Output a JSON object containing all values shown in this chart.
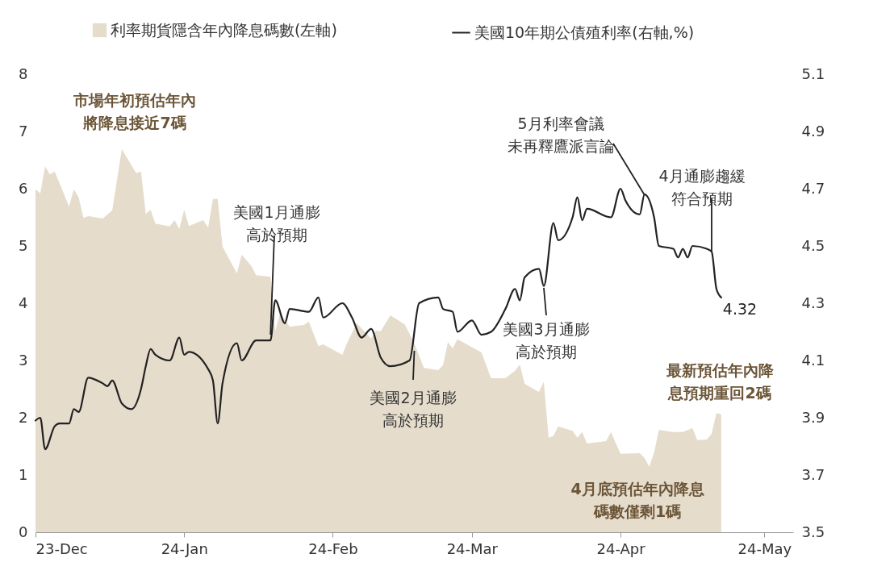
{
  "chart_data": {
    "type": "area",
    "legend": "top",
    "xlim": [
      "2023-12-01",
      "2024-05-07"
    ],
    "xticks": [
      {
        "value": "2023-12-01",
        "label": "23-Dec"
      },
      {
        "value": "2024-01-01",
        "label": "24-Jan"
      },
      {
        "value": "2024-02-01",
        "label": "24-Feb"
      },
      {
        "value": "2024-03-01",
        "label": "24-Mar"
      },
      {
        "value": "2024-04-01",
        "label": "24-Apr"
      },
      {
        "value": "2024-05-01",
        "label": "24-May"
      }
    ],
    "ylim": [
      0,
      8
    ],
    "yticks": [
      0,
      1,
      2,
      3,
      4,
      5,
      6,
      7,
      8
    ],
    "y2lim": [
      3.5,
      5.1
    ],
    "y2ticks": [
      3.5,
      3.7,
      3.9,
      4.1,
      4.3,
      4.5,
      4.7,
      4.9,
      5.1
    ],
    "series": [
      {
        "name": "利率期貨隱含年內降息碼數(左軸)",
        "color": "#e5dccc",
        "x": [
          "2023-12-01",
          "2023-12-02",
          "2023-12-03",
          "2023-12-04",
          "2023-12-05",
          "2023-12-08",
          "2023-12-09",
          "2023-12-10",
          "2023-12-11",
          "2023-12-12",
          "2023-12-15",
          "2023-12-17",
          "2023-12-19",
          "2023-12-22",
          "2023-12-23",
          "2023-12-24",
          "2023-12-25",
          "2023-12-26",
          "2023-12-29",
          "2023-12-30",
          "2023-12-31",
          "2024-01-01",
          "2024-01-02",
          "2024-01-05",
          "2024-01-06",
          "2024-01-07",
          "2024-01-08",
          "2024-01-09",
          "2024-01-12",
          "2024-01-13",
          "2024-01-15",
          "2024-01-16",
          "2024-01-19",
          "2024-01-20",
          "2024-01-21",
          "2024-01-23",
          "2024-01-26",
          "2024-01-27",
          "2024-01-29",
          "2024-01-30",
          "2024-02-03",
          "2024-02-04",
          "2024-02-06",
          "2024-02-09",
          "2024-02-10",
          "2024-02-11",
          "2024-02-13",
          "2024-02-16",
          "2024-02-18",
          "2024-02-20",
          "2024-02-23",
          "2024-02-24",
          "2024-02-25",
          "2024-02-26",
          "2024-02-27",
          "2024-03-03",
          "2024-03-05",
          "2024-03-08",
          "2024-03-10",
          "2024-03-11",
          "2024-03-12",
          "2024-03-15",
          "2024-03-16",
          "2024-03-17",
          "2024-03-18",
          "2024-03-19",
          "2024-03-22",
          "2024-03-23",
          "2024-03-24",
          "2024-03-25",
          "2024-03-29",
          "2024-03-30",
          "2024-04-01",
          "2024-04-05",
          "2024-04-06",
          "2024-04-07",
          "2024-04-08",
          "2024-04-09",
          "2024-04-12",
          "2024-04-14",
          "2024-04-16",
          "2024-04-17",
          "2024-04-19",
          "2024-04-20",
          "2024-04-21",
          "2024-04-22"
        ],
        "values": [
          5.99,
          5.92,
          6.39,
          6.25,
          6.3,
          5.69,
          5.99,
          5.85,
          5.49,
          5.52,
          5.48,
          5.62,
          6.69,
          6.27,
          6.3,
          5.56,
          5.63,
          5.39,
          5.34,
          5.45,
          5.3,
          5.63,
          5.35,
          5.45,
          5.32,
          5.82,
          5.82,
          4.99,
          4.52,
          4.85,
          4.65,
          4.49,
          4.46,
          3.51,
          3.83,
          3.59,
          3.62,
          3.68,
          3.25,
          3.28,
          3.1,
          3.31,
          3.65,
          3.38,
          3.52,
          3.51,
          3.79,
          3.63,
          3.3,
          2.87,
          2.83,
          2.92,
          3.32,
          3.21,
          3.37,
          3.14,
          2.69,
          2.69,
          2.82,
          2.93,
          2.59,
          2.45,
          2.63,
          1.65,
          1.68,
          1.85,
          1.77,
          1.65,
          1.75,
          1.55,
          1.59,
          1.75,
          1.37,
          1.38,
          1.3,
          1.14,
          1.39,
          1.79,
          1.75,
          1.75,
          1.82,
          1.61,
          1.62,
          1.72,
          2.08,
          2.06
        ]
      },
      {
        "name": "美國10年期公債殖利率(右軸,%)",
        "type": "line",
        "axis": "y2",
        "color": "#222222",
        "x": [
          "2023-12-01",
          "2023-12-02",
          "2023-12-03",
          "2023-12-05",
          "2023-12-06",
          "2023-12-08",
          "2023-12-09",
          "2023-12-10",
          "2023-12-12",
          "2023-12-15",
          "2023-12-16",
          "2023-12-17",
          "2023-12-19",
          "2023-12-21",
          "2023-12-23",
          "2023-12-24",
          "2023-12-25",
          "2023-12-26",
          "2023-12-29",
          "2023-12-31",
          "2024-01-01",
          "2024-01-02",
          "2024-01-06",
          "2024-01-07",
          "2024-01-08",
          "2024-01-09",
          "2024-01-12",
          "2024-01-13",
          "2024-01-16",
          "2024-01-19",
          "2024-01-20",
          "2024-01-22",
          "2024-01-23",
          "2024-01-27",
          "2024-01-29",
          "2024-01-30",
          "2024-02-03",
          "2024-02-05",
          "2024-02-07",
          "2024-02-09",
          "2024-02-11",
          "2024-02-13",
          "2024-02-17",
          "2024-02-19",
          "2024-02-23",
          "2024-02-24",
          "2024-02-26",
          "2024-02-27",
          "2024-03-01",
          "2024-03-03",
          "2024-03-05",
          "2024-03-08",
          "2024-03-10",
          "2024-03-11",
          "2024-03-12",
          "2024-03-15",
          "2024-03-16",
          "2024-03-18",
          "2024-03-19",
          "2024-03-22",
          "2024-03-23",
          "2024-03-24",
          "2024-03-25",
          "2024-03-30",
          "2024-04-01",
          "2024-04-02",
          "2024-04-05",
          "2024-04-06",
          "2024-04-08",
          "2024-04-09",
          "2024-04-12",
          "2024-04-13",
          "2024-04-14",
          "2024-04-15",
          "2024-04-16",
          "2024-04-19",
          "2024-04-20",
          "2024-04-21",
          "2024-04-22"
        ],
        "values": [
          3.89,
          3.9,
          3.79,
          3.87,
          3.88,
          3.88,
          3.93,
          3.92,
          4.04,
          4.02,
          4.01,
          4.03,
          3.95,
          3.93,
          4.0,
          4.08,
          4.14,
          4.12,
          4.1,
          4.18,
          4.12,
          4.13,
          4.07,
          4.03,
          3.88,
          4.02,
          4.16,
          4.1,
          4.17,
          4.17,
          4.31,
          4.23,
          4.28,
          4.27,
          4.32,
          4.25,
          4.3,
          4.25,
          4.18,
          4.21,
          4.11,
          4.08,
          4.1,
          4.3,
          4.32,
          4.28,
          4.27,
          4.2,
          4.24,
          4.19,
          4.2,
          4.28,
          4.35,
          4.31,
          4.39,
          4.42,
          4.36,
          4.58,
          4.52,
          4.6,
          4.67,
          4.59,
          4.63,
          4.6,
          4.7,
          4.66,
          4.61,
          4.68,
          4.6,
          4.5,
          4.49,
          4.46,
          4.49,
          4.46,
          4.5,
          4.49,
          4.48,
          4.35,
          4.32
        ],
        "value_labels": [
          null,
          null,
          null,
          null,
          null,
          null,
          null,
          null,
          null,
          null,
          null,
          null,
          null,
          null,
          null,
          null,
          null,
          null,
          null,
          null,
          null,
          null,
          null,
          null,
          null,
          null,
          null,
          null,
          null,
          null,
          null,
          null,
          null,
          null,
          null,
          null,
          null,
          null,
          null,
          null,
          null,
          null,
          null,
          null,
          null,
          null,
          null,
          null,
          null,
          null,
          null,
          null,
          null,
          null,
          null,
          null,
          null,
          null,
          null,
          null,
          null,
          null,
          null,
          null,
          null,
          null,
          null,
          null,
          null,
          null,
          null,
          null,
          null,
          null,
          null,
          null,
          null,
          null,
          "4.32"
        ]
      }
    ],
    "annotations": [
      "市場年初預估年內將降息接近7碼",
      {
        "text": "美國1月通膨高於預期",
        "x": "2024-01-19",
        "y": 3.45
      },
      {
        "text": "美國2月通膨高於預期",
        "x": "2024-02-18",
        "y": 3.17
      },
      {
        "text": "美國3月通膨高於預期",
        "x": "2024-03-16",
        "y": 4.27
      },
      {
        "text": "5月利率會議未再釋鷹派言論",
        "x": "2024-04-06",
        "y": 5.89
      },
      {
        "text": "4月通膨趨緩符合預期",
        "x": "2024-04-20",
        "y": 4.9
      },
      "最新預估年內降息預期重回2碼",
      "4月底預估年內降息碼數僅剩1碼"
    ]
  }
}
